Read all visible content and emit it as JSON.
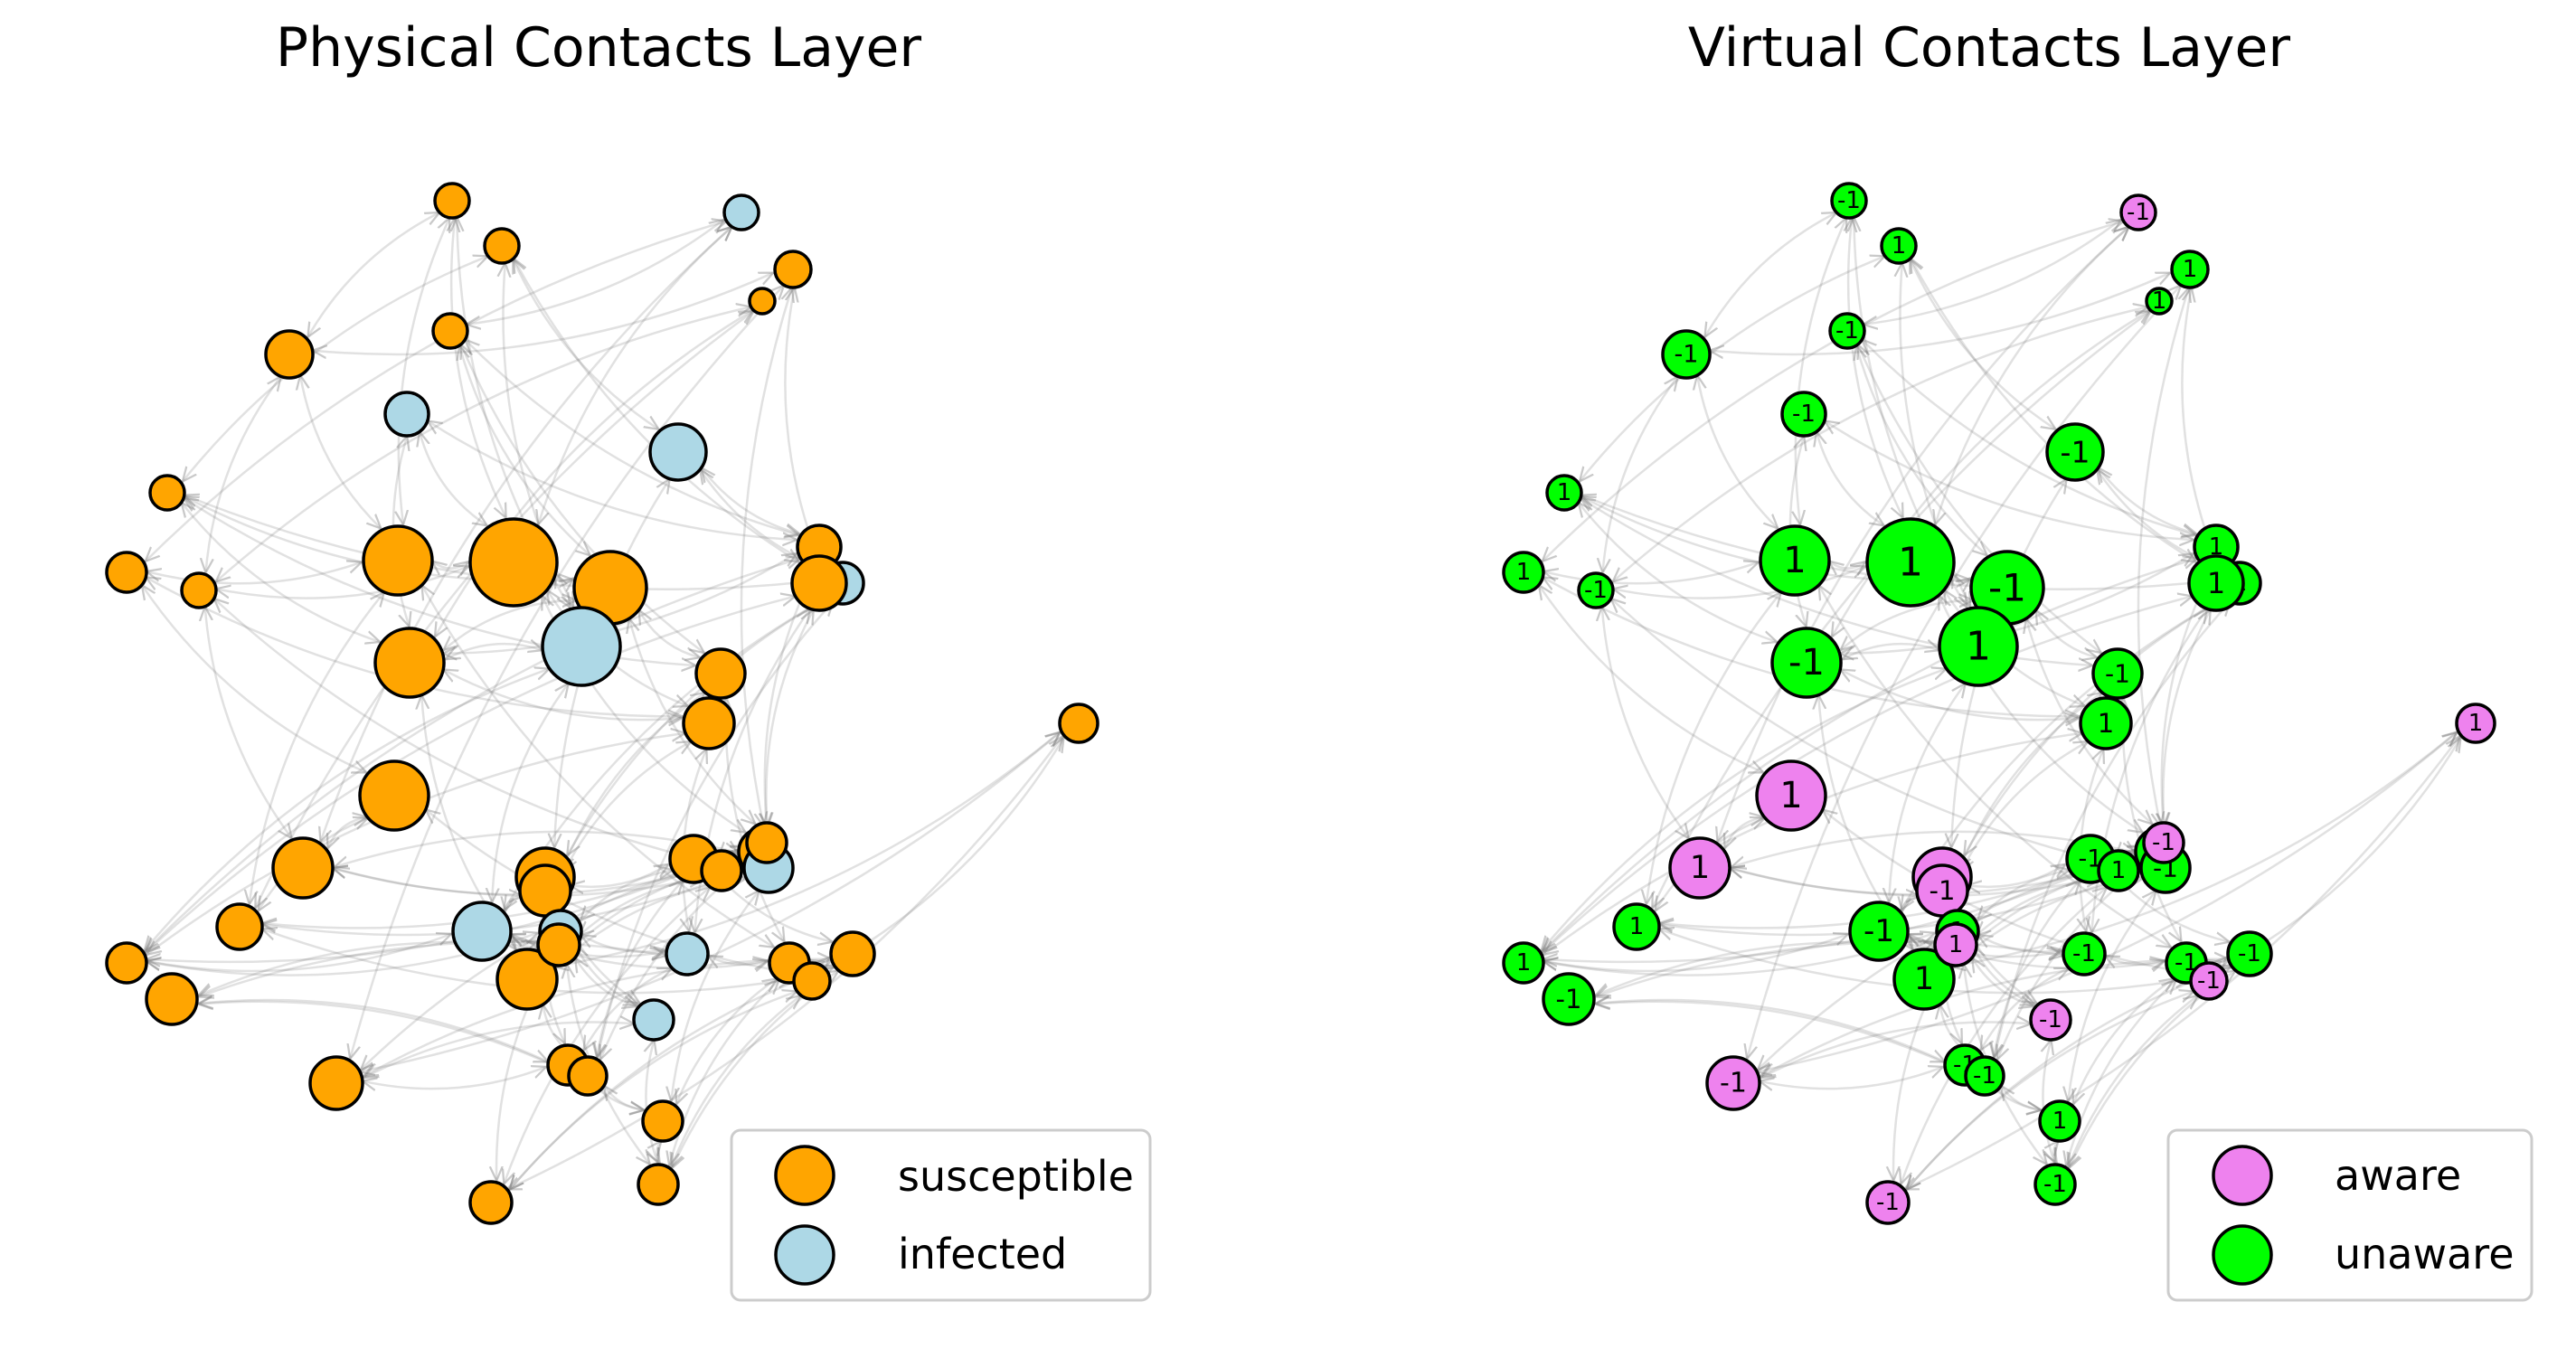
{
  "panels": [
    {
      "title": "Physical Contacts Layer",
      "legend": [
        {
          "label": "susceptible",
          "color": "#FFA500"
        },
        {
          "label": "infected",
          "color": "#ADD8E6"
        }
      ]
    },
    {
      "title": "Virtual Contacts Layer",
      "legend": [
        {
          "label": "aware",
          "color": "#EE82EE"
        },
        {
          "label": "unaware",
          "color": "#00FF00"
        }
      ]
    }
  ],
  "colors": {
    "susceptible": "#FFA500",
    "infected": "#ADD8E6",
    "aware": "#EE82EE",
    "unaware": "#00FF00"
  },
  "physical_states": [
    "susceptible",
    "susceptible",
    "susceptible",
    "infected",
    "susceptible",
    "susceptible",
    "infected",
    "susceptible",
    "susceptible",
    "infected",
    "susceptible",
    "susceptible",
    "susceptible",
    "susceptible",
    "susceptible",
    "infected",
    "susceptible",
    "susceptible",
    "susceptible",
    "infected",
    "susceptible",
    "susceptible",
    "susceptible",
    "susceptible",
    "susceptible",
    "susceptible",
    "susceptible",
    "susceptible",
    "infected",
    "susceptible",
    "susceptible",
    "susceptible",
    "infected",
    "susceptible",
    "infected",
    "infected",
    "susceptible",
    "susceptible",
    "susceptible",
    "susceptible",
    "susceptible",
    "infected",
    "susceptible",
    "susceptible",
    "susceptible",
    "susceptible",
    "susceptible",
    "susceptible",
    "susceptible",
    "susceptible"
  ],
  "virtual_states": [
    "unaware",
    "unaware",
    "unaware",
    "unaware",
    "unaware",
    "unaware",
    "aware",
    "unaware",
    "unaware",
    "unaware",
    "unaware",
    "unaware",
    "unaware",
    "unaware",
    "unaware",
    "unaware",
    "unaware",
    "unaware",
    "unaware",
    "unaware",
    "unaware",
    "aware",
    "unaware",
    "aware",
    "unaware",
    "aware",
    "unaware",
    "unaware",
    "unaware",
    "aware",
    "unaware",
    "unaware",
    "unaware",
    "aware",
    "unaware",
    "unaware",
    "unaware",
    "aware",
    "unaware",
    "unaware",
    "aware",
    "aware",
    "aware",
    "unaware",
    "unaware",
    "aware",
    "unaware",
    "unaware",
    "aware",
    "unaware"
  ],
  "virtual_labels": [
    "-1",
    "1",
    "-1",
    "-1",
    "-1",
    "1",
    "-1",
    "1",
    "1",
    "-1",
    "1",
    "-1",
    "1",
    "1",
    "-1",
    "1",
    "-1",
    "-1",
    "1",
    "1",
    "1",
    "1",
    "1",
    "-1",
    "1",
    "1",
    "1",
    "1",
    "-1",
    "-1",
    "-1",
    "1",
    "-1",
    "-1",
    "1",
    "-1",
    "-1",
    "-1",
    "-1",
    "1",
    "1",
    "-1",
    "-1",
    "-1",
    "-1",
    "-1",
    "1",
    "-1",
    "1",
    "-1"
  ],
  "edges": [
    [
      0,
      4
    ],
    [
      0,
      12
    ],
    [
      0,
      13
    ],
    [
      1,
      5
    ],
    [
      1,
      9
    ],
    [
      1,
      15
    ],
    [
      2,
      6
    ],
    [
      2,
      17
    ],
    [
      2,
      18
    ],
    [
      3,
      16
    ],
    [
      3,
      18
    ],
    [
      4,
      7
    ],
    [
      4,
      11
    ],
    [
      5,
      14
    ],
    [
      5,
      19
    ],
    [
      6,
      10
    ],
    [
      6,
      13
    ],
    [
      7,
      20
    ],
    [
      7,
      24
    ],
    [
      8,
      11
    ],
    [
      8,
      16
    ],
    [
      9,
      19
    ],
    [
      9,
      23
    ],
    [
      10,
      12
    ],
    [
      10,
      21
    ],
    [
      11,
      13
    ],
    [
      11,
      25
    ],
    [
      12,
      26
    ],
    [
      12,
      13
    ],
    [
      13,
      14
    ],
    [
      13,
      22
    ],
    [
      14,
      16
    ],
    [
      14,
      17
    ],
    [
      15,
      16
    ],
    [
      15,
      27
    ],
    [
      16,
      18
    ],
    [
      16,
      22
    ],
    [
      17,
      22
    ],
    [
      17,
      29
    ],
    [
      18,
      20
    ],
    [
      18,
      24
    ],
    [
      19,
      23
    ],
    [
      19,
      28
    ],
    [
      20,
      24
    ],
    [
      20,
      27
    ],
    [
      21,
      25
    ],
    [
      21,
      26
    ],
    [
      22,
      27
    ],
    [
      22,
      29
    ],
    [
      23,
      28
    ],
    [
      23,
      29
    ],
    [
      24,
      25
    ],
    [
      24,
      30
    ],
    [
      25,
      31
    ],
    [
      25,
      32
    ],
    [
      26,
      33
    ],
    [
      26,
      37
    ],
    [
      27,
      28
    ],
    [
      27,
      34
    ],
    [
      28,
      35
    ],
    [
      28,
      36
    ],
    [
      29,
      30
    ],
    [
      29,
      41
    ],
    [
      30,
      34
    ],
    [
      30,
      38
    ],
    [
      31,
      32
    ],
    [
      31,
      40
    ],
    [
      32,
      33
    ],
    [
      32,
      39
    ],
    [
      33,
      42
    ],
    [
      33,
      44
    ],
    [
      34,
      35
    ],
    [
      34,
      45
    ],
    [
      35,
      36
    ],
    [
      35,
      43
    ],
    [
      36,
      38
    ],
    [
      36,
      46
    ],
    [
      37,
      47
    ],
    [
      37,
      48
    ],
    [
      38,
      45
    ],
    [
      38,
      47
    ],
    [
      39,
      40
    ],
    [
      39,
      44
    ],
    [
      40,
      41
    ],
    [
      40,
      49
    ],
    [
      41,
      42
    ],
    [
      41,
      47
    ],
    [
      42,
      43
    ],
    [
      42,
      48
    ],
    [
      43,
      46
    ],
    [
      43,
      49
    ],
    [
      44,
      46
    ],
    [
      44,
      49
    ],
    [
      45,
      48
    ],
    [
      46,
      47
    ],
    [
      0,
      15
    ],
    [
      1,
      20
    ],
    [
      2,
      14
    ],
    [
      3,
      13
    ],
    [
      4,
      12
    ],
    [
      5,
      16
    ],
    [
      6,
      25
    ],
    [
      8,
      26
    ],
    [
      9,
      18
    ],
    [
      10,
      22
    ],
    [
      11,
      31
    ],
    [
      12,
      36
    ],
    [
      14,
      33
    ],
    [
      16,
      39
    ],
    [
      17,
      36
    ],
    [
      18,
      27
    ],
    [
      20,
      35
    ],
    [
      21,
      37
    ],
    [
      23,
      34
    ],
    [
      24,
      39
    ],
    [
      26,
      32
    ],
    [
      27,
      33
    ],
    [
      28,
      40
    ],
    [
      29,
      43
    ],
    [
      30,
      44
    ],
    [
      31,
      45
    ],
    [
      32,
      46
    ],
    [
      34,
      41
    ],
    [
      35,
      49
    ],
    [
      36,
      47
    ],
    [
      37,
      45
    ],
    [
      38,
      42
    ],
    [
      39,
      48
    ],
    [
      19,
      44
    ],
    [
      7,
      42
    ],
    [
      5,
      17
    ],
    [
      15,
      28
    ],
    [
      22,
      35
    ],
    [
      13,
      24
    ],
    [
      40,
      47
    ]
  ]
}
